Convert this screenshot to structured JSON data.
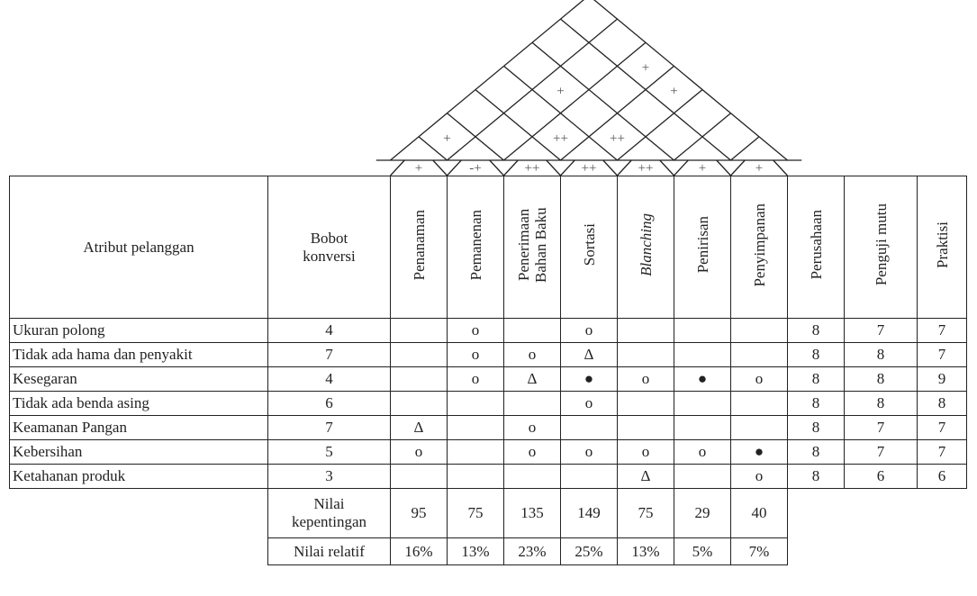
{
  "header": {
    "attribute_col": "Atribut pelanggan",
    "weight_col": "Bobot konversi",
    "process_cols": [
      "Penanaman",
      "Pemanenan",
      "Penerimaan Bahan Baku",
      "Sortasi",
      "Blanching",
      "Penirisan",
      "Penyimpanan"
    ],
    "eval_cols": [
      "Perusahaan",
      "Penguji mutu",
      "Praktisi"
    ]
  },
  "rows": [
    {
      "attribute": "Ukuran polong",
      "weight": "4",
      "cells": [
        "",
        "o",
        "",
        "o",
        "",
        "",
        ""
      ],
      "eval": [
        "8",
        "7",
        "7"
      ]
    },
    {
      "attribute": "Tidak ada hama dan penyakit",
      "weight": "7",
      "cells": [
        "",
        "o",
        "o",
        "Δ",
        "",
        "",
        ""
      ],
      "eval": [
        "8",
        "8",
        "7"
      ]
    },
    {
      "attribute": "Kesegaran",
      "weight": "4",
      "cells": [
        "",
        "o",
        "Δ",
        "●",
        "o",
        "●",
        "o"
      ],
      "eval": [
        "8",
        "8",
        "9"
      ]
    },
    {
      "attribute": "Tidak ada benda asing",
      "weight": "6",
      "cells": [
        "",
        "",
        "",
        "o",
        "",
        "",
        ""
      ],
      "eval": [
        "8",
        "8",
        "8"
      ]
    },
    {
      "attribute": "Keamanan Pangan",
      "weight": "7",
      "cells": [
        "Δ",
        "",
        "o",
        "",
        "",
        "",
        ""
      ],
      "eval": [
        "8",
        "7",
        "7"
      ]
    },
    {
      "attribute": "Kebersihan",
      "weight": "5",
      "cells": [
        "o",
        "",
        "o",
        "o",
        "o",
        "o",
        "●"
      ],
      "eval": [
        "8",
        "7",
        "7"
      ]
    },
    {
      "attribute": "Ketahanan produk",
      "weight": "3",
      "cells": [
        "",
        "",
        "",
        "",
        "Δ",
        "",
        "o"
      ],
      "eval": [
        "8",
        "6",
        "6"
      ]
    }
  ],
  "summary": {
    "importance_label": "Nilai kepentingan",
    "importance_values": [
      "95",
      "75",
      "135",
      "149",
      "75",
      "29",
      "40"
    ],
    "relative_label": "Nilai relatif",
    "relative_values": [
      "16%",
      "13%",
      "23%",
      "25%",
      "13%",
      "5%",
      "7%"
    ]
  },
  "roof": {
    "column_direction": [
      "+",
      "-+",
      "++",
      "++",
      "++",
      "+",
      "+"
    ],
    "correlations": [
      {
        "a": 0,
        "b": 1,
        "symbol": "+"
      },
      {
        "a": 2,
        "b": 3,
        "symbol": "++"
      },
      {
        "a": 3,
        "b": 4,
        "symbol": "++"
      },
      {
        "a": 1,
        "b": 4,
        "symbol": "+"
      },
      {
        "a": 3,
        "b": 6,
        "symbol": "+"
      },
      {
        "a": 2,
        "b": 6,
        "symbol": "+"
      }
    ]
  }
}
